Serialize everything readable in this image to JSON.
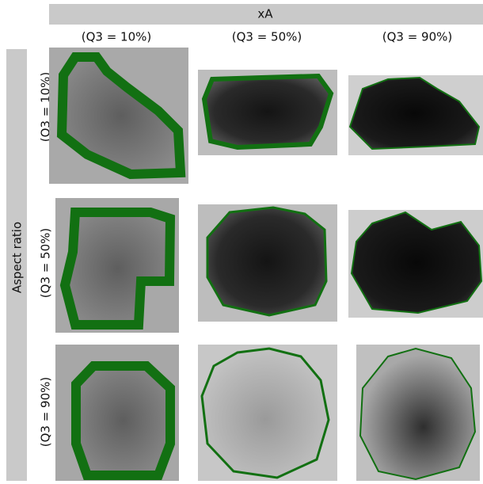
{
  "header": {
    "title": "xA",
    "columns": [
      "(Q3 = 10%)",
      "(Q3 = 50%)",
      "(Q3 = 90%)"
    ]
  },
  "side": {
    "title": "Aspect ratio",
    "rows": [
      "(Q3 = 10%)",
      "(Q3 = 50%)",
      "(Q3 = 90%)"
    ]
  }
}
